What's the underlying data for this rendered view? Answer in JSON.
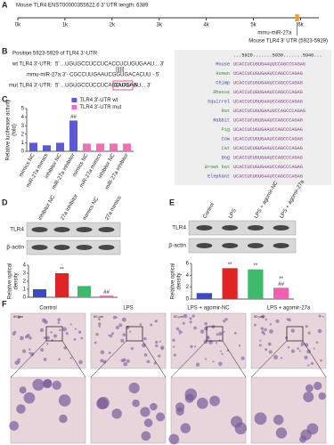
{
  "panels": {
    "A": {
      "label": "A",
      "title": "Mouse TLR4 ENST00000355622.6 3' UTR length: 6389",
      "xlim": [
        0,
        6389
      ],
      "ticks": [
        {
          "value": 0,
          "label": "0k"
        },
        {
          "value": 1000,
          "label": "1k"
        },
        {
          "value": 2000,
          "label": "2k"
        },
        {
          "value": 3000,
          "label": "3k"
        },
        {
          "value": 4000,
          "label": "4k"
        },
        {
          "value": 5000,
          "label": "5k"
        },
        {
          "value": 6000,
          "label": "6k"
        }
      ],
      "site": [
        5923,
        5929
      ],
      "site_label": "mmu-miR-27a",
      "site_caption": "Mouse TLR4 3' UTR (5923-5929)"
    },
    "B": {
      "label": "B",
      "position": "Position 5923-5929 of TLR4 3'-UTR",
      "wt": {
        "name": "wt TLR4 3'-UTR:",
        "seq": "5' ...UGUGCCUCCUCACCUCUGUGAAU... 3'"
      },
      "pairing": "||||||",
      "mirna": {
        "name": "mmu-miR-27a:",
        "seq": "3'- CGCCUUGAAUCGGUGACACUU - 5'"
      },
      "mut": {
        "name": "mut TLR4 3'-UTR:",
        "seq_start": "5' ...UGUGCCUCCUCACCUAU",
        "seq_mut": "GACGAG",
        "seq_end": "AU... 3'"
      },
      "alignment": {
        "header": "...5920.......5930.......5940...",
        "rows": [
          {
            "species": "Mouse",
            "seq": "UCACCUCUGUGAAUUCCAGCCCAGAG"
          },
          {
            "species": "Human",
            "seq": "UCACCUCUGUGAAUCCAGCCCAGAG"
          },
          {
            "species": "Chimp",
            "seq": "UCACCUCUGUGAAUCCAGCCCAGAG"
          },
          {
            "species": "Rhesus",
            "seq": "UCACCUCUGUGAAUCCAGCCCAGAG"
          },
          {
            "species": "Squirrel",
            "seq": "UCACCUCUGUGAAUCCAGCCCAGAG"
          },
          {
            "species": "Rat",
            "seq": "UCACCUCUGUGAAUUCCAGCCCAGAG"
          },
          {
            "species": "Rabbit",
            "seq": "UCACCUCUGUGAAUCCAGCCCAGAG"
          },
          {
            "species": "Pig",
            "seq": "UCACCUCUGUGAAUCCAGCCCAGAG"
          },
          {
            "species": "Cow",
            "seq": "UCACCUCUGUGAAUCCAGCCCAGAG"
          },
          {
            "species": "Cat",
            "seq": "UCACCUCUGUGAAUCCAGCCCAGAG"
          },
          {
            "species": "Dog",
            "seq": "UCACCUCUGUGAAUCCAGCCCAGAG"
          },
          {
            "species": "Brown bat",
            "seq": "UCACCUCUGUGAAUCCAGCCCAGAG"
          },
          {
            "species": "Elephant",
            "seq": "UCACCUCUGUGAAUCCAGCCCAGAG"
          }
        ]
      }
    },
    "C": {
      "label": "C",
      "chart": {
        "type": "bar",
        "ylabel": [
          "Relative luciferase activity",
          "(fold)"
        ],
        "categories": [
          "mimics NC",
          "miR-27a mimics",
          "inhibitor NC",
          "miR-27a inhibitor"
        ],
        "series": [
          {
            "name": "TLR4 3'-UTR wt",
            "color": "#5a5ad8",
            "values": [
              1.0,
              0.7,
              1.0,
              3.6
            ]
          },
          {
            "name": "TLR4 3'-UTR mut",
            "color": "#f070b8",
            "values": [
              0.9,
              0.9,
              0.9,
              0.9
            ]
          }
        ],
        "ylim": [
          0,
          5
        ],
        "yticks": [
          0,
          1,
          2,
          3,
          4,
          5
        ],
        "annotations": [
          {
            "text": "##",
            "series": 0,
            "index": 3
          }
        ]
      }
    },
    "D": {
      "label": "D",
      "blot_rows": [
        "TLR4",
        "β-actin"
      ],
      "chart": {
        "type": "bar",
        "ylabel": [
          "Relative optical",
          "density"
        ],
        "categories": [
          "inhibitor NC",
          "27a inhibitor",
          "mimics NC",
          "27a mimics"
        ],
        "series": [
          {
            "values": [
              1.0,
              3.0,
              1.4,
              0.2
            ],
            "colors": [
              "#3b49c8",
              "#e02424",
              "#3dbb6a",
              "#f25fb0"
            ]
          }
        ],
        "ylim": [
          0,
          4
        ],
        "yticks": [
          0,
          1,
          2,
          3,
          4
        ],
        "annotations": [
          {
            "text": "**",
            "series": 0,
            "index": 1
          },
          {
            "text": "##",
            "series": 0,
            "index": 3
          }
        ]
      }
    },
    "E": {
      "label": "E",
      "blot_rows": [
        "TLR4",
        "β-actin"
      ],
      "chart": {
        "type": "bar",
        "ylabel": [
          "Relative optical",
          "density"
        ],
        "categories": [
          "Control",
          "LPS",
          "LPS + agomir-NC",
          "LPS + agomir-27a"
        ],
        "series": [
          {
            "values": [
              1.0,
              5.2,
              5.0,
              1.9
            ],
            "colors": [
              "#3b49c8",
              "#e02424",
              "#3dbb6a",
              "#f25fb0"
            ]
          }
        ],
        "ylim": [
          0,
          6
        ],
        "yticks": [
          0,
          2,
          4,
          6
        ],
        "annotations": [
          {
            "text": "**",
            "series": 0,
            "index": 1
          },
          {
            "text": "**",
            "series": 0,
            "index": 2
          },
          {
            "text": "##",
            "series": 0,
            "index": 3
          },
          {
            "text": "**",
            "series": 0,
            "index": 3
          }
        ]
      }
    },
    "F": {
      "label": "F",
      "scale": "50 μm",
      "titles": [
        "Control",
        "LPS",
        "LPS + agomir-NC",
        "LPS + agomir-27a"
      ]
    }
  }
}
